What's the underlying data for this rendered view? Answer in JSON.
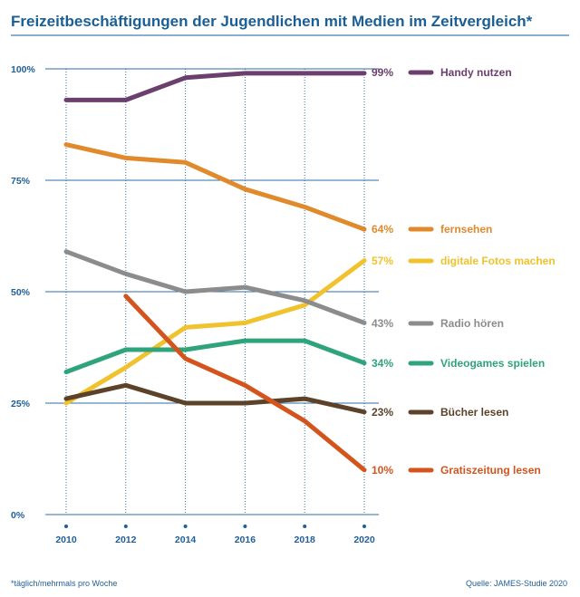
{
  "chart_data": {
    "type": "line",
    "title": "Freizeitbeschäftigungen der Jugendlichen mit Medien im Zeitvergleich*",
    "x": [
      2010,
      2012,
      2014,
      2016,
      2018,
      2020
    ],
    "ylim": [
      0,
      100
    ],
    "yticks": [
      "0%",
      "25%",
      "50%",
      "75%",
      "100%"
    ],
    "ytick_values": [
      0,
      25,
      50,
      75,
      100
    ],
    "grid": true,
    "legend": "right",
    "series": [
      {
        "name": "Handy nutzen",
        "color": "#6b3f6e",
        "values": [
          93,
          93,
          98,
          99,
          99,
          99
        ],
        "end_label": "99%"
      },
      {
        "name": "fernsehen",
        "color": "#e08a2c",
        "values": [
          83,
          80,
          79,
          73,
          69,
          64
        ],
        "end_label": "64%"
      },
      {
        "name": "digitale Fotos machen",
        "color": "#f0c22e",
        "values": [
          25,
          33,
          42,
          43,
          47,
          57
        ],
        "end_label": "57%"
      },
      {
        "name": "Radio hören",
        "color": "#8c8c8c",
        "values": [
          59,
          54,
          50,
          51,
          48,
          43
        ],
        "end_label": "43%"
      },
      {
        "name": "Videogames spielen",
        "color": "#2fa37a",
        "values": [
          32,
          37,
          37,
          39,
          39,
          34
        ],
        "end_label": "34%"
      },
      {
        "name": "Bücher lesen",
        "color": "#5c4228",
        "values": [
          26,
          29,
          25,
          25,
          26,
          23
        ],
        "end_label": "23%"
      },
      {
        "name": "Gratiszeitung lesen",
        "color": "#d4541e",
        "values": [
          null,
          49,
          35,
          29,
          21,
          10
        ],
        "end_label": "10%"
      }
    ]
  },
  "footnote": "*täglich/mehrmals pro Woche",
  "source": "Quelle: JAMES-Studie 2020",
  "colors": {
    "title": "#1a5e96",
    "axis": "#1f5f99",
    "grid": "#2f6ea8"
  }
}
